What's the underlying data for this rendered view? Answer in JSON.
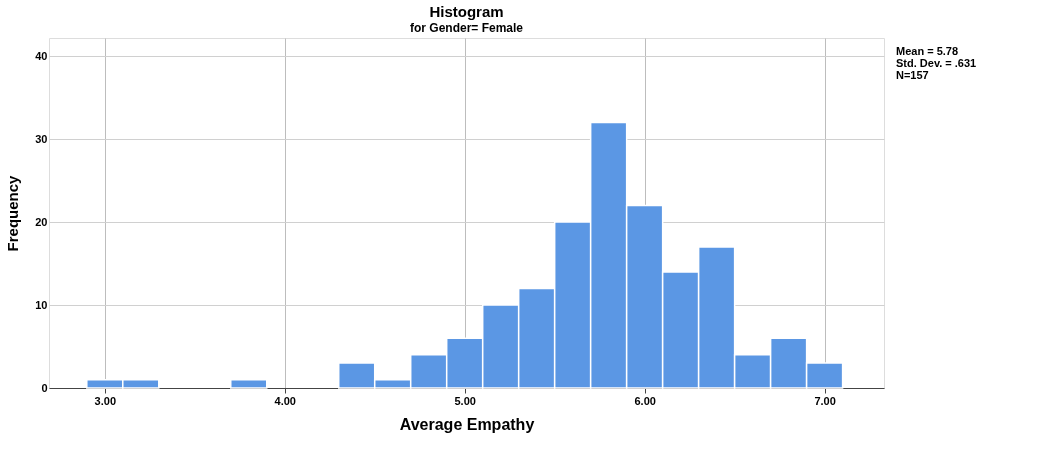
{
  "chart_data": {
    "type": "histogram",
    "title": "Histogram",
    "subtitle": "for Gender= Female",
    "xlabel": "Average Empathy",
    "ylabel": "Frequency",
    "bins": [
      2.9,
      3.1,
      3.3,
      3.5,
      3.7,
      3.9,
      4.1,
      4.3,
      4.5,
      4.7,
      4.9,
      5.1,
      5.3,
      5.5,
      5.7,
      5.9,
      6.1,
      6.3,
      6.5,
      6.7,
      6.9,
      7.1
    ],
    "values": [
      1,
      1,
      0,
      0,
      1,
      0,
      0,
      3,
      1,
      4,
      6,
      10,
      12,
      20,
      32,
      22,
      14,
      17,
      4,
      6,
      3
    ],
    "color": "#5b97e4",
    "xlim": [
      2.69,
      7.33
    ],
    "ylim": [
      0,
      42.2
    ],
    "xticks": [
      {
        "value": 3,
        "label": "3.00"
      },
      {
        "value": 4,
        "label": "4.00"
      },
      {
        "value": 5,
        "label": "5.00"
      },
      {
        "value": 6,
        "label": "6.00"
      },
      {
        "value": 7,
        "label": "7.00"
      }
    ],
    "yticks": [
      0,
      10,
      20,
      30,
      40
    ],
    "grid": true,
    "annotations": [
      "Mean = 5.78",
      "Std. Dev. = .631",
      "N=157"
    ]
  }
}
